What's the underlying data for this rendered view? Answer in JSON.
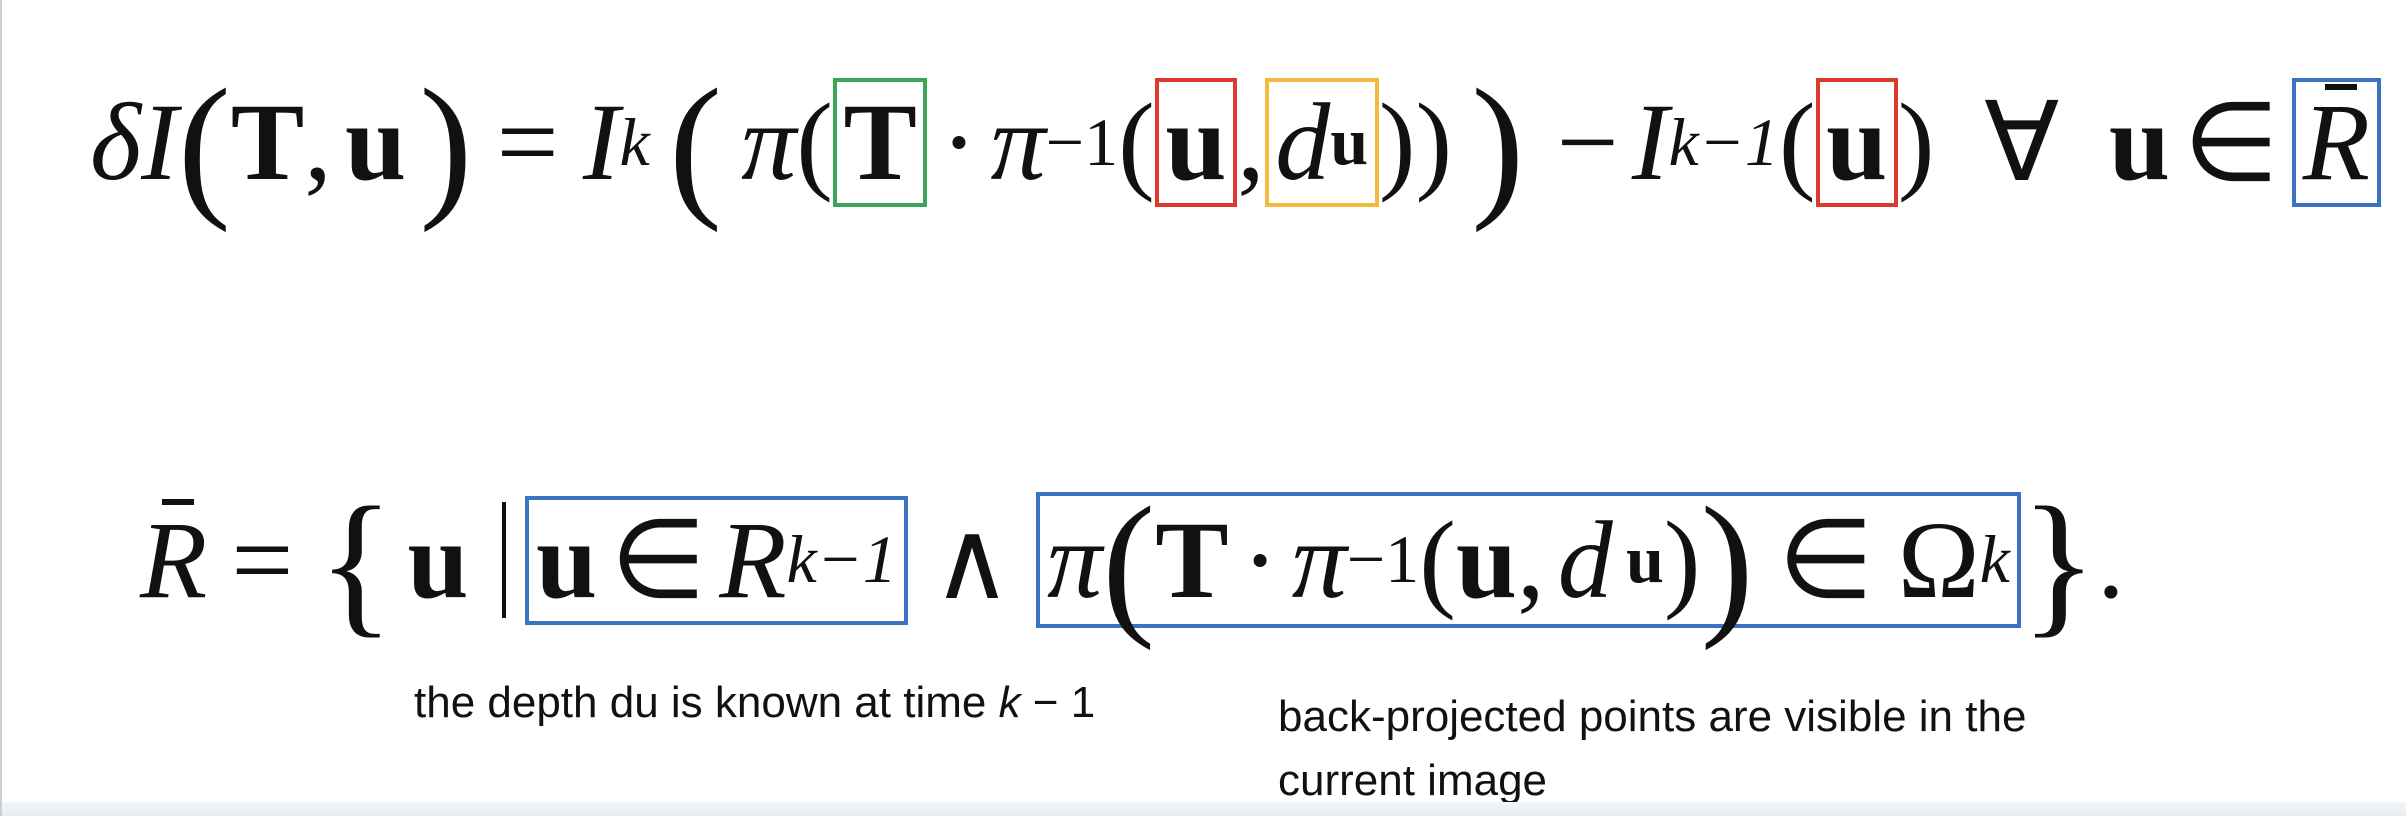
{
  "equation_1": {
    "lhs": [
      "δ",
      "I",
      "(",
      "T",
      ",",
      "u",
      ")",
      "="
    ],
    "I": "I",
    "k": "k",
    "pi": "π",
    "T": "T",
    "dot": "·",
    "inv": "−1",
    "u": "u",
    "comma": ",",
    "d": "d",
    "k_minus_1": "k−1",
    "minus": "−",
    "forall": "∀",
    "in": "∈",
    "R": "R",
    "open_big": "(",
    "close_big": ")",
    "open_paren": "(",
    "close_paren": ")"
  },
  "equation_2": {
    "R": "R",
    "equals": "=",
    "open_brace": "{",
    "close_brace": "}",
    "period": ".",
    "u": "u",
    "in": "∈",
    "R_cal": "R",
    "k_minus_1": "k−1",
    "and": "∧",
    "pi": "π",
    "T": "T",
    "dot": "·",
    "inv": "−1",
    "comma": ",",
    "d": "d",
    "Omega": "Ω",
    "k": "k",
    "open_big": "(",
    "close_big": ")",
    "open_paren": "(",
    "close_paren": ")"
  },
  "captions": {
    "left_text": "the depth du is known at time ",
    "left_k": "k",
    "left_tail": " − 1",
    "right_line1": "back-projected points are visible in the",
    "right_line2": "current image"
  },
  "colors": {
    "box_green": "#3aa655",
    "box_red": "#dd3a2f",
    "box_yellow": "#f2bb3c",
    "box_blue": "#3b73c0"
  }
}
